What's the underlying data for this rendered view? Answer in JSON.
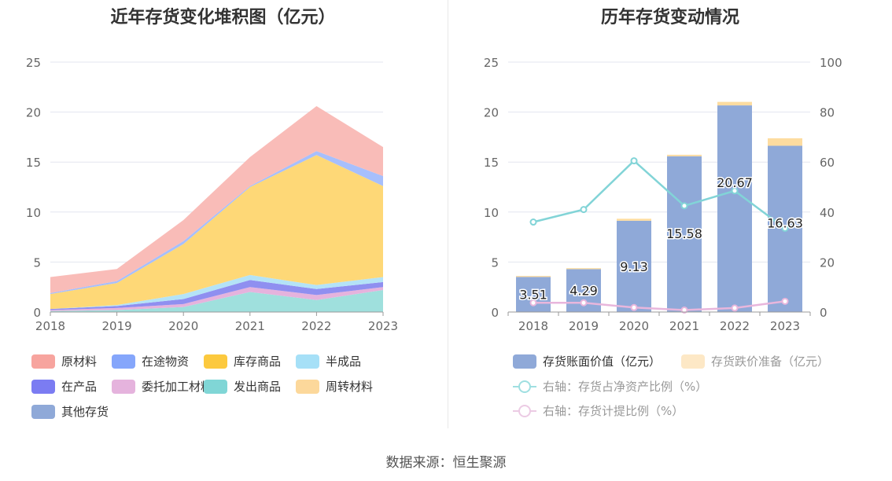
{
  "left": {
    "title": "近年存货变化堆积图（亿元）",
    "chart_data": {
      "type": "area",
      "stacked": true,
      "x": [
        "2018",
        "2019",
        "2020",
        "2021",
        "2022",
        "2023"
      ],
      "yticks": [
        "0",
        "5",
        "10",
        "15",
        "20",
        "25"
      ],
      "ylim": [
        0,
        25
      ],
      "grid": true,
      "legend_position": "bottom",
      "series": [
        {
          "name": "发出商品",
          "color": "#9fe0dd",
          "values": [
            0.1,
            0.2,
            0.5,
            2.0,
            1.2,
            2.2
          ]
        },
        {
          "name": "委托加工材料",
          "color": "#e5b3dd",
          "values": [
            0.1,
            0.2,
            0.3,
            0.5,
            0.5,
            0.3
          ]
        },
        {
          "name": "在产品",
          "color": "#8f8ff0",
          "values": [
            0.1,
            0.2,
            0.5,
            0.7,
            0.6,
            0.5
          ]
        },
        {
          "name": "半成品",
          "color": "#b4e3f7",
          "values": [
            0.0,
            0.1,
            0.5,
            0.5,
            0.4,
            0.5
          ]
        },
        {
          "name": "库存商品",
          "color": "#fed877",
          "values": [
            1.5,
            2.2,
            5.0,
            8.8,
            13.0,
            9.1
          ]
        },
        {
          "name": "周转材料",
          "color": "#fde3a6",
          "values": [
            0.0,
            0.0,
            0.0,
            0.0,
            0.0,
            0.0
          ]
        },
        {
          "name": "在途物资",
          "color": "#a7bffc",
          "values": [
            0.1,
            0.2,
            0.3,
            0.1,
            0.4,
            1.0
          ]
        },
        {
          "name": "原材料",
          "color": "#f9bcb8",
          "values": [
            1.6,
            1.2,
            2.1,
            2.9,
            4.5,
            2.9
          ]
        },
        {
          "name": "其他存货",
          "color": "#8fa9d8",
          "values": [
            0.0,
            0.0,
            0.0,
            0.0,
            0.0,
            0.0
          ]
        }
      ]
    },
    "legend": [
      {
        "label": "原材料",
        "color": "#f7a49e"
      },
      {
        "label": "在途物资",
        "color": "#85a6fb"
      },
      {
        "label": "库存商品",
        "color": "#fcc93e"
      },
      {
        "label": "半成品",
        "color": "#a6e0f7"
      },
      {
        "label": "在产品",
        "color": "#7b7cf2"
      },
      {
        "label": "委托加工材料",
        "color": "#e5b3dd"
      },
      {
        "label": "发出商品",
        "color": "#80d6d6"
      },
      {
        "label": "周转材料",
        "color": "#fcd89b"
      },
      {
        "label": "其他存货",
        "color": "#8fa9d8"
      }
    ]
  },
  "right": {
    "title": "历年存货变动情况",
    "chart_data": {
      "type": "bar",
      "categories": [
        "2018",
        "2019",
        "2020",
        "2021",
        "2022",
        "2023"
      ],
      "yticks_left": [
        "0",
        "5",
        "10",
        "15",
        "20",
        "25"
      ],
      "ylim_left": [
        0,
        25
      ],
      "yticks_right": [
        "0",
        "20",
        "40",
        "60",
        "80",
        "100"
      ],
      "ylim_right": [
        0,
        100
      ],
      "grid": true,
      "legend_position": "bottom",
      "bar_series": [
        {
          "name": "存货账面价值（亿元）",
          "color": "#8fa9d8",
          "values": [
            3.51,
            4.29,
            9.13,
            15.58,
            20.67,
            16.63
          ],
          "labels": [
            "3.51",
            "4.29",
            "9.13",
            "15.58",
            "20.67",
            "16.63"
          ]
        },
        {
          "name": "存货跌价准备（亿元）",
          "color": "#fddca0",
          "values": [
            0.1,
            0.1,
            0.2,
            0.15,
            0.35,
            0.75
          ]
        }
      ],
      "line_series": [
        {
          "name": "右轴：存货占净资产比例（%）",
          "color": "#82d4d7",
          "axis": "right",
          "values": [
            36.0,
            41.0,
            60.5,
            42.5,
            48.5,
            33.5
          ]
        },
        {
          "name": "右轴：存货计提比例（%）",
          "color": "#e8b6dc",
          "axis": "right",
          "values": [
            3.7,
            3.7,
            1.8,
            0.8,
            1.6,
            4.3
          ]
        }
      ]
    },
    "legend": [
      {
        "label": "存货账面价值（亿元）",
        "color": "#8fa9d8",
        "kind": "box"
      },
      {
        "label": "存货跌价准备（亿元）",
        "color": "#fde8c6",
        "kind": "box",
        "muted": true
      },
      {
        "label": "右轴：存货占净资产比例（%）",
        "color": "#9fdfe1",
        "kind": "line",
        "muted": true
      },
      {
        "label": "右轴：存货计提比例（%）",
        "color": "#eccbe4",
        "kind": "line",
        "muted": true
      }
    ]
  },
  "footer": {
    "source": "数据来源：恒生聚源"
  }
}
